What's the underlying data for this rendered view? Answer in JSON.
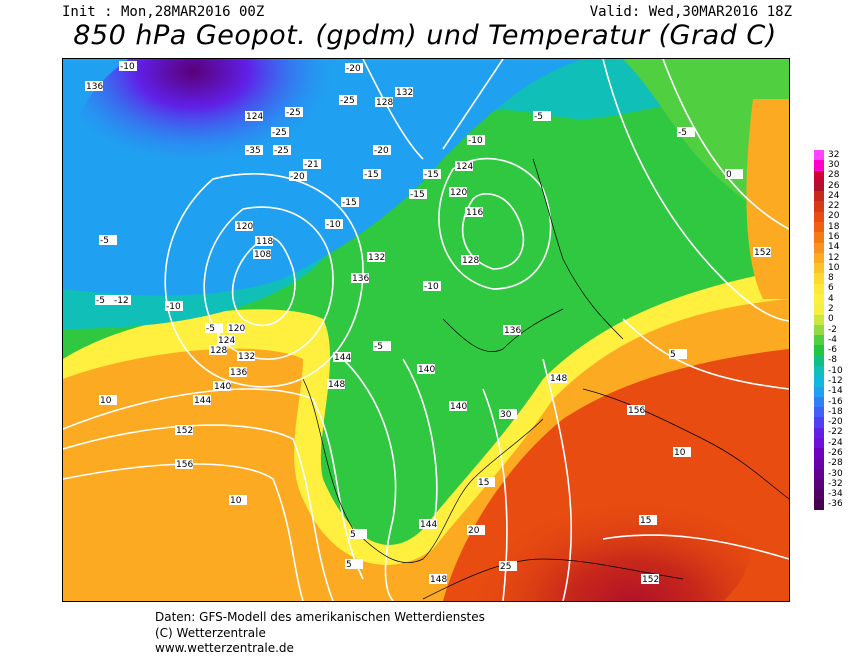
{
  "header": {
    "init": "Init : Mon,28MAR2016 00Z",
    "valid": "Valid: Wed,30MAR2016 18Z",
    "title": "850 hPa Geopot. (gpdm) und Temperatur (Grad C)"
  },
  "colorbar": {
    "ticks": [
      "32",
      "30",
      "28",
      "26",
      "24",
      "22",
      "20",
      "18",
      "16",
      "14",
      "12",
      "10",
      "8",
      "6",
      "4",
      "2",
      "0",
      "-2",
      "-4",
      "-6",
      "-8",
      "-10",
      "-12",
      "-14",
      "-16",
      "-18",
      "-20",
      "-22",
      "-24",
      "-26",
      "-28",
      "-30",
      "-32",
      "-34",
      "-36"
    ],
    "colors": [
      "#ff44ff",
      "#ff00cc",
      "#cc0033",
      "#b0102a",
      "#c8281a",
      "#d83a14",
      "#e84c10",
      "#f06010",
      "#f47a14",
      "#f8921c",
      "#fbaa22",
      "#fdc22a",
      "#ffd830",
      "#ffe838",
      "#fff040",
      "#f4f040",
      "#c8e840",
      "#90dc40",
      "#50d040",
      "#20c840",
      "#10c080",
      "#10c0b8",
      "#10b8e0",
      "#20a0f0",
      "#3080f8",
      "#4060f8",
      "#5040f0",
      "#6020e8",
      "#7010d8",
      "#7000c0",
      "#6a00a8",
      "#640090",
      "#5a0078",
      "#500060",
      "#460050"
    ]
  },
  "map": {
    "geopotential_labels": [
      "136",
      "124",
      "128",
      "120",
      "118",
      "108",
      "132",
      "116",
      "120",
      "124",
      "128",
      "132",
      "136",
      "140",
      "144",
      "148",
      "152",
      "156",
      "136",
      "140",
      "144",
      "148",
      "152",
      "156",
      "120",
      "124",
      "128",
      "132",
      "136",
      "140",
      "144",
      "148",
      "152",
      "156",
      "136",
      "132",
      "140",
      "144",
      "148",
      "152",
      "156"
    ],
    "temperature_labels": [
      "-10",
      "-20",
      "-25",
      "-25",
      "-35",
      "-25",
      "-20",
      "-21",
      "-25",
      "-15",
      "-20",
      "-15",
      "-10",
      "-15",
      "-5",
      "-5",
      "-12",
      "-10",
      "-5",
      "-10",
      "-15",
      "-5",
      "-10",
      "-5",
      "-5",
      "0",
      "5",
      "10",
      "15",
      "20",
      "25",
      "30",
      "10",
      "15",
      "10",
      "5",
      "5",
      "10",
      "15",
      "20",
      "0",
      "5",
      "10",
      "5",
      "-5",
      "0",
      "5",
      "10",
      "15",
      "15",
      "10"
    ]
  },
  "footer": {
    "line1": "Daten: GFS-Modell des amerikanischen Wetterdienstes",
    "line2": "(C) Wetterzentrale",
    "line3": "www.wetterzentrale.de"
  }
}
